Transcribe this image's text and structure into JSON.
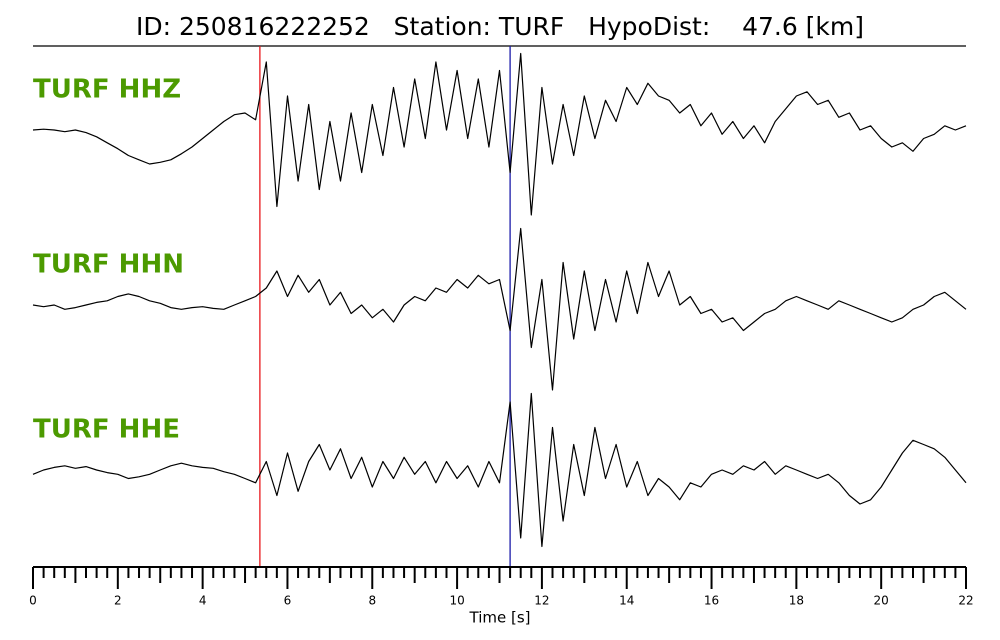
{
  "chart_data": {
    "type": "seismogram",
    "title": "ID: 250816222252   Station: TURF   HypoDist:    47.6 [km]",
    "xlabel": "Time [s]",
    "xlim": [
      0,
      22
    ],
    "xticks": [
      0,
      2,
      4,
      6,
      8,
      10,
      12,
      14,
      16,
      18,
      20,
      22
    ],
    "minor_xticks": [
      0.25,
      0.5,
      0.75,
      1,
      1.25,
      1.5,
      1.75,
      2.25,
      2.5,
      2.75,
      3,
      3.25,
      3.5,
      3.75,
      4.25,
      4.5,
      4.75,
      5,
      5.25,
      5.5,
      5.75,
      6.25,
      6.5,
      6.75,
      7,
      7.25,
      7.5,
      7.75,
      8.25,
      8.5,
      8.75,
      9,
      9.25,
      9.5,
      9.75,
      10.25,
      10.5,
      10.75,
      11,
      11.25,
      11.5,
      11.75,
      12.25,
      12.5,
      12.75,
      13,
      13.25,
      13.5,
      13.75,
      14.25,
      14.5,
      14.75,
      15,
      15.25,
      15.5,
      15.75,
      16.25,
      16.5,
      16.75,
      17,
      17.25,
      17.5,
      17.75,
      18.25,
      18.5,
      18.75,
      19,
      19.25,
      19.5,
      19.75,
      20.25,
      20.5,
      20.75,
      21,
      21.25,
      21.5,
      21.75
    ],
    "ylim": [
      -1,
      1
    ],
    "label_color": "#4c9a00",
    "x": [
      0,
      0.25,
      0.5,
      0.75,
      1,
      1.25,
      1.5,
      1.75,
      2,
      2.25,
      2.5,
      2.75,
      3,
      3.25,
      3.5,
      3.75,
      4,
      4.25,
      4.5,
      4.75,
      5,
      5.25,
      5.5,
      5.75,
      6,
      6.25,
      6.5,
      6.75,
      7,
      7.25,
      7.5,
      7.75,
      8,
      8.25,
      8.5,
      8.75,
      9,
      9.25,
      9.5,
      9.75,
      10,
      10.25,
      10.5,
      10.75,
      11,
      11.25,
      11.5,
      11.75,
      12,
      12.25,
      12.5,
      12.75,
      13,
      13.25,
      13.5,
      13.75,
      14,
      14.25,
      14.5,
      14.75,
      15,
      15.25,
      15.5,
      15.75,
      16,
      16.25,
      16.5,
      16.75,
      17,
      17.25,
      17.5,
      17.75,
      18,
      18.25,
      18.5,
      18.75,
      19,
      19.25,
      19.5,
      19.75,
      20,
      20.25,
      20.5,
      20.75,
      21,
      21.25,
      21.5,
      21.75,
      22
    ],
    "series": [
      {
        "name": "TURF HHZ",
        "color": "#000000",
        "values": [
          0,
          0.01,
          0,
          -0.02,
          0,
          -0.03,
          -0.08,
          -0.15,
          -0.22,
          -0.3,
          -0.35,
          -0.4,
          -0.38,
          -0.35,
          -0.28,
          -0.2,
          -0.1,
          0,
          0.1,
          0.18,
          0.2,
          0.12,
          0.8,
          -0.9,
          0.4,
          -0.6,
          0.3,
          -0.7,
          0.1,
          -0.6,
          0.2,
          -0.5,
          0.3,
          -0.3,
          0.5,
          -0.2,
          0.6,
          -0.1,
          0.8,
          0.0,
          0.7,
          -0.1,
          0.6,
          -0.2,
          0.7,
          -0.5,
          0.9,
          -1.0,
          0.5,
          -0.4,
          0.3,
          -0.3,
          0.4,
          -0.1,
          0.35,
          0.1,
          0.5,
          0.3,
          0.55,
          0.4,
          0.35,
          0.2,
          0.3,
          0.05,
          0.2,
          -0.05,
          0.1,
          -0.1,
          0.05,
          -0.15,
          0.1,
          0.25,
          0.4,
          0.45,
          0.3,
          0.35,
          0.15,
          0.2,
          0.0,
          0.05,
          -0.1,
          -0.2,
          -0.15,
          -0.25,
          -0.1,
          -0.05,
          0.05,
          0.0,
          0.05
        ]
      },
      {
        "name": "TURF HHN",
        "color": "#000000",
        "values": [
          0,
          -0.02,
          0,
          -0.05,
          -0.03,
          0,
          0.03,
          0.05,
          0.1,
          0.13,
          0.1,
          0.05,
          0.02,
          -0.03,
          -0.05,
          -0.03,
          -0.02,
          -0.04,
          -0.05,
          0,
          0.05,
          0.1,
          0.2,
          0.4,
          0.1,
          0.35,
          0.15,
          0.3,
          0.0,
          0.15,
          -0.1,
          0.0,
          -0.15,
          -0.05,
          -0.2,
          0.0,
          0.1,
          0.05,
          0.2,
          0.15,
          0.3,
          0.2,
          0.35,
          0.25,
          0.3,
          -0.3,
          0.9,
          -0.5,
          0.3,
          -1.0,
          0.5,
          -0.4,
          0.4,
          -0.3,
          0.3,
          -0.2,
          0.4,
          -0.1,
          0.5,
          0.1,
          0.4,
          0.0,
          0.1,
          -0.1,
          -0.05,
          -0.2,
          -0.15,
          -0.3,
          -0.2,
          -0.1,
          -0.05,
          0.05,
          0.1,
          0.05,
          0.0,
          -0.05,
          0.05,
          0.0,
          -0.05,
          -0.1,
          -0.15,
          -0.2,
          -0.15,
          -0.05,
          0.0,
          0.1,
          0.15,
          0.05,
          -0.05
        ]
      },
      {
        "name": "TURF HHE",
        "color": "#000000",
        "values": [
          -0.05,
          0,
          0.03,
          0.05,
          0.02,
          0.04,
          0.0,
          -0.03,
          -0.05,
          -0.1,
          -0.08,
          -0.05,
          0,
          0.05,
          0.08,
          0.05,
          0.03,
          0.02,
          -0.02,
          -0.05,
          -0.1,
          -0.15,
          0.1,
          -0.3,
          0.2,
          -0.25,
          0.1,
          0.3,
          0.0,
          0.25,
          -0.1,
          0.15,
          -0.2,
          0.1,
          -0.1,
          0.15,
          -0.05,
          0.1,
          -0.15,
          0.1,
          -0.1,
          0.05,
          -0.2,
          0.1,
          -0.15,
          0.8,
          -0.8,
          0.9,
          -0.9,
          0.5,
          -0.6,
          0.3,
          -0.3,
          0.5,
          -0.1,
          0.3,
          -0.2,
          0.1,
          -0.3,
          -0.1,
          -0.2,
          -0.35,
          -0.15,
          -0.2,
          -0.05,
          0.0,
          -0.05,
          0.05,
          0.0,
          0.1,
          -0.05,
          0.05,
          0.0,
          -0.05,
          -0.1,
          -0.05,
          -0.15,
          -0.3,
          -0.4,
          -0.35,
          -0.2,
          0.0,
          0.2,
          0.35,
          0.3,
          0.25,
          0.15,
          0.0,
          -0.15
        ]
      }
    ],
    "vlines": [
      {
        "x": 5.35,
        "color": "#e8171b"
      },
      {
        "x": 11.25,
        "color": "#1a1aa8"
      }
    ]
  }
}
